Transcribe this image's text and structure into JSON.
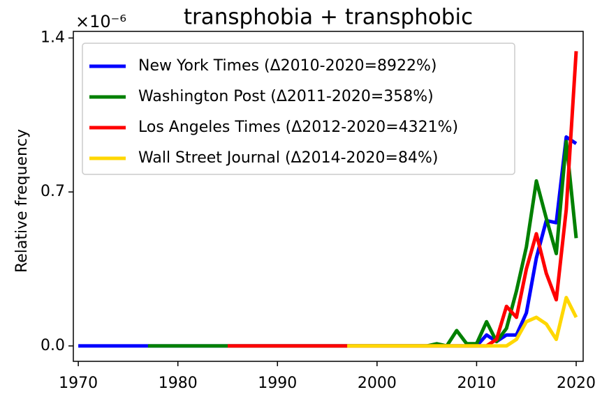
{
  "chart_data": {
    "type": "line",
    "title": "transphobia + transphobic",
    "y_label": "Relative frequency",
    "y_offset_label": "×10⁻⁶",
    "x": [
      1970,
      1971,
      1972,
      1973,
      1974,
      1975,
      1976,
      1977,
      1978,
      1979,
      1980,
      1981,
      1982,
      1983,
      1984,
      1985,
      1986,
      1987,
      1988,
      1989,
      1990,
      1991,
      1992,
      1993,
      1994,
      1995,
      1996,
      1997,
      1998,
      1999,
      2000,
      2001,
      2002,
      2003,
      2004,
      2005,
      2006,
      2007,
      2008,
      2009,
      2010,
      2011,
      2012,
      2013,
      2014,
      2015,
      2016,
      2017,
      2018,
      2019,
      2020
    ],
    "series": [
      {
        "name": "New York Times (Δ2010-2020=8922%)",
        "color": "#0000ff",
        "values": [
          0,
          0,
          0,
          0,
          0,
          0,
          0,
          0,
          0,
          0,
          0,
          0,
          0,
          0,
          0,
          0,
          0,
          0,
          0,
          0,
          0,
          0,
          0,
          0,
          0,
          0,
          0,
          0,
          0,
          0,
          0,
          0,
          0,
          0,
          0,
          0,
          0,
          0,
          0,
          0,
          0,
          0.05,
          0.02,
          0.05,
          0.05,
          0.15,
          0.4,
          0.57,
          0.56,
          0.95,
          0.92
        ]
      },
      {
        "name": "Washington Post (Δ2011-2020=358%)",
        "color": "#008000",
        "values": [
          null,
          null,
          null,
          null,
          null,
          null,
          null,
          0,
          0,
          0,
          0,
          0,
          0,
          0,
          0,
          0,
          0,
          0,
          0,
          0,
          0,
          0,
          0,
          0,
          0,
          0,
          0,
          0,
          0,
          0,
          0,
          0,
          0,
          0,
          0,
          0,
          0.01,
          0,
          0.07,
          0.01,
          0.01,
          0.11,
          0.02,
          0.08,
          0.25,
          0.45,
          0.75,
          0.58,
          0.42,
          0.93,
          0.49
        ]
      },
      {
        "name": "Los Angeles Times (Δ2012-2020=4321%)",
        "color": "#ff0000",
        "values": [
          null,
          null,
          null,
          null,
          null,
          null,
          null,
          null,
          null,
          null,
          null,
          null,
          null,
          null,
          null,
          0,
          0,
          0,
          0,
          0,
          0,
          0,
          0,
          0,
          0,
          0,
          0,
          0,
          0,
          0,
          0,
          0,
          0,
          0,
          0,
          0,
          0,
          0,
          0,
          0,
          0,
          0,
          0.03,
          0.18,
          0.13,
          0.35,
          0.51,
          0.33,
          0.21,
          0.62,
          1.34
        ]
      },
      {
        "name": "Wall Street Journal (Δ2014-2020=84%)",
        "color": "#ffd700",
        "values": [
          null,
          null,
          null,
          null,
          null,
          null,
          null,
          null,
          null,
          null,
          null,
          null,
          null,
          null,
          null,
          null,
          null,
          null,
          null,
          null,
          null,
          null,
          null,
          null,
          null,
          null,
          null,
          0,
          0,
          0,
          0,
          0,
          0,
          0,
          0,
          0,
          0,
          0,
          0,
          0,
          0,
          0,
          0,
          0,
          0.03,
          0.11,
          0.13,
          0.1,
          0.03,
          0.22,
          0.13
        ]
      }
    ],
    "xlim": [
      1969.5,
      2020.7
    ],
    "ylim": [
      -0.07,
      1.43
    ],
    "xticks": [
      1970,
      1980,
      1990,
      2000,
      2010,
      2020
    ],
    "yticks": [
      {
        "value": 0,
        "label": "0.0"
      },
      0.7,
      1.4
    ],
    "legend": "upper left",
    "grid": false
  }
}
